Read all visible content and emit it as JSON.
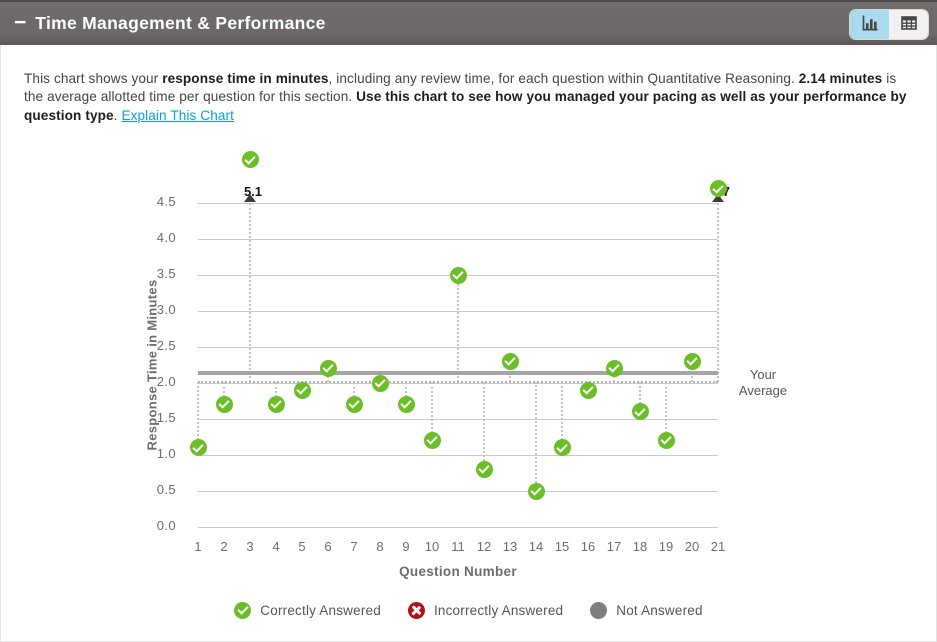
{
  "header": {
    "collapse_icon": "−",
    "title": "Time Management & Performance",
    "view_toggle": {
      "chart_view_label": "Chart view",
      "table_view_label": "Table view",
      "active": "chart"
    }
  },
  "description": {
    "segments": [
      {
        "text": "This chart shows your ",
        "style": "normal"
      },
      {
        "text": "response time in minutes",
        "style": "bold"
      },
      {
        "text": ", including any review time, for each question within Quantitative Reasoning. ",
        "style": "normal"
      },
      {
        "text": "2.14 minutes",
        "style": "bold"
      },
      {
        "text": " is the average allotted time per question for this section. ",
        "style": "normal"
      },
      {
        "text": "Use this chart to see how you managed your pacing as well as your performance by question type",
        "style": "bold"
      },
      {
        "text": ". ",
        "style": "normal"
      },
      {
        "text": "Explain This Chart",
        "style": "link"
      }
    ]
  },
  "chart_data": {
    "type": "scatter",
    "xlabel": "Question Number",
    "ylabel": "Response Time in Minutes",
    "x": [
      1,
      2,
      3,
      4,
      5,
      6,
      7,
      8,
      9,
      10,
      11,
      12,
      13,
      14,
      15,
      16,
      17,
      18,
      19,
      20,
      21
    ],
    "values": [
      1.1,
      1.7,
      5.1,
      1.7,
      1.9,
      2.2,
      1.7,
      2.0,
      1.7,
      1.2,
      3.5,
      0.8,
      2.3,
      0.5,
      1.1,
      1.9,
      2.2,
      1.6,
      1.2,
      2.3,
      4.7
    ],
    "status": [
      "correct",
      "correct",
      "correct",
      "correct",
      "correct",
      "correct",
      "correct",
      "correct",
      "correct",
      "correct",
      "correct",
      "correct",
      "correct",
      "correct",
      "correct",
      "correct",
      "correct",
      "correct",
      "correct",
      "correct",
      "correct"
    ],
    "ylim": [
      0,
      4.5
    ],
    "ytick_step": 0.5,
    "grid": true,
    "clipped_annotations": [
      {
        "question": 3,
        "label": "5.1"
      },
      {
        "question": 21,
        "label": "4.7"
      }
    ],
    "average_allotted": 2.14,
    "your_average": 2.02,
    "your_average_label": "Your Average",
    "legend_position": "bottom",
    "legend": [
      {
        "label": "Correctly Answered",
        "marker": "correct",
        "color": "#6cbe28"
      },
      {
        "label": "Incorrectly Answered",
        "marker": "incorrect",
        "color": "#b11218"
      },
      {
        "label": "Not Answered",
        "marker": "not_answered",
        "color": "#7f7f7f"
      }
    ]
  },
  "colors": {
    "header_bg": "#6c6868",
    "active_toggle_bg": "#a9daee",
    "link": "#0c9ed8",
    "gridline": "#c9c9c9",
    "average_line": "#a5a5a5",
    "correct_green": "#6cbe28",
    "incorrect_red": "#b11218",
    "not_answered_gray": "#7f7f7f"
  }
}
